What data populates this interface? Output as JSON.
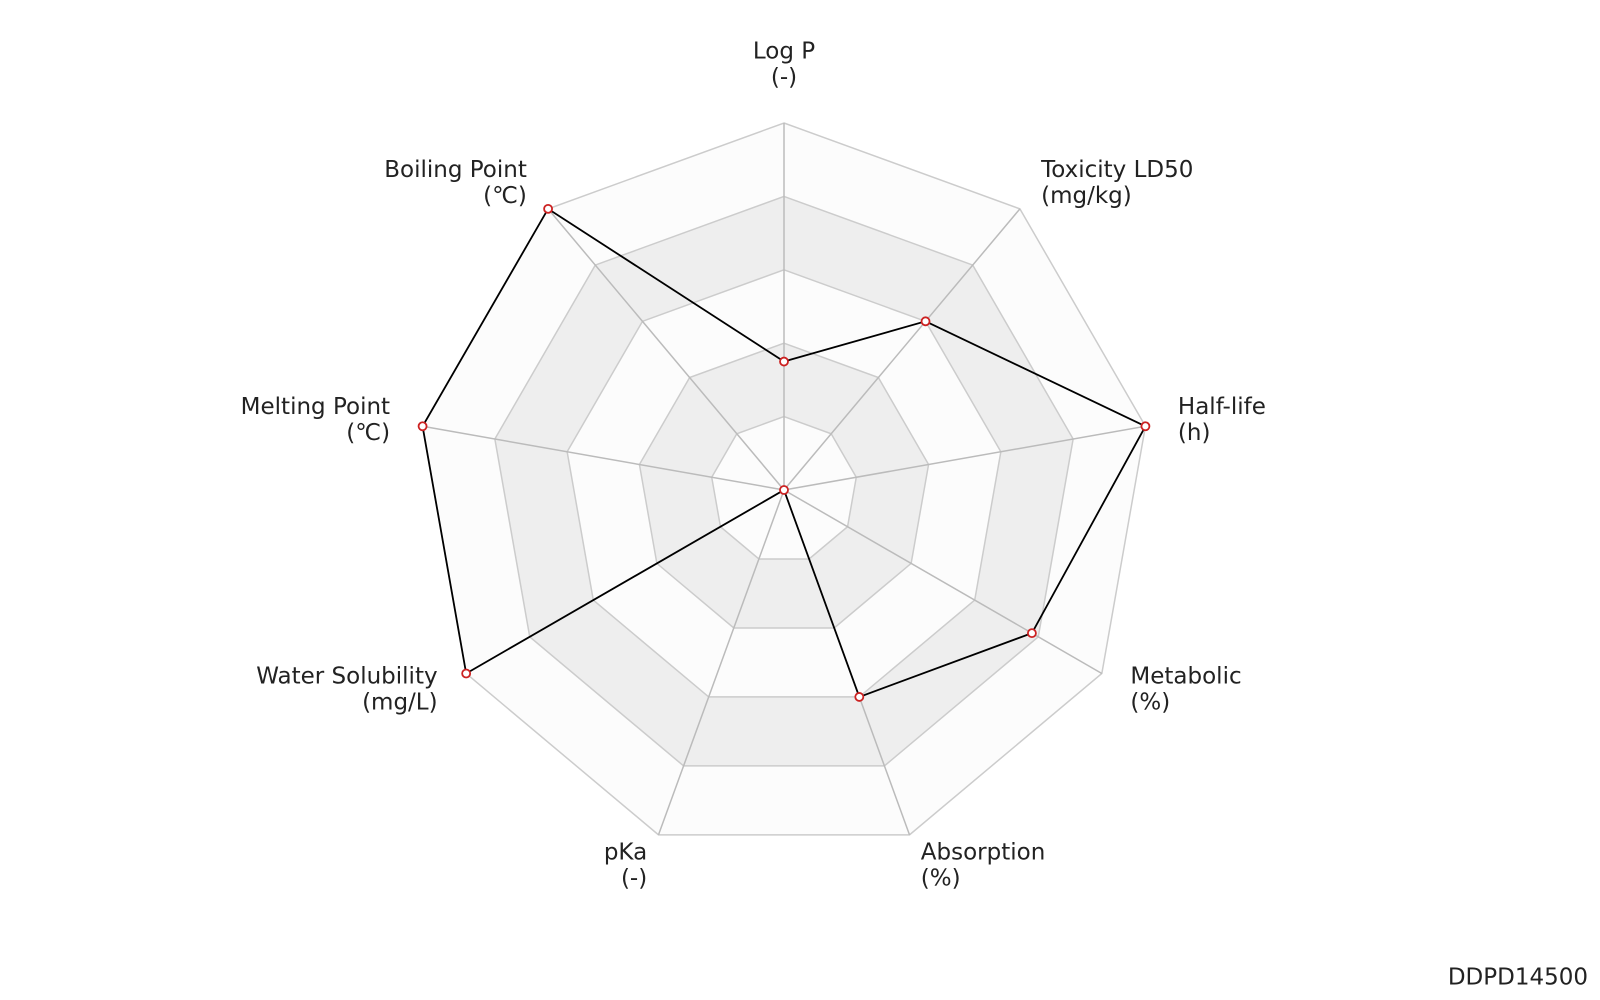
{
  "chart_data": {
    "type": "radar",
    "categories": [
      "Log P",
      "Toxicity LD50",
      "Half-life",
      "Metabolic",
      "Absorption",
      "pKa",
      "Water Solubility",
      "Melting Point",
      "Boiling Point"
    ],
    "units": [
      "(-)",
      "(mg/kg)",
      "(h)",
      "(%)",
      "(%)",
      "(-)",
      "(mg/L)",
      "(℃)",
      "(℃)"
    ],
    "values": [
      0.35,
      0.6,
      1,
      0.78,
      0.6,
      0,
      1,
      1,
      1
    ],
    "rlim": [
      0,
      1
    ],
    "rticks": [
      0.2,
      0.4,
      0.6,
      0.8,
      1
    ],
    "line_color": "#000000",
    "marker_color": "#cc2222",
    "grid": true,
    "watermark": "DDPD14500"
  }
}
